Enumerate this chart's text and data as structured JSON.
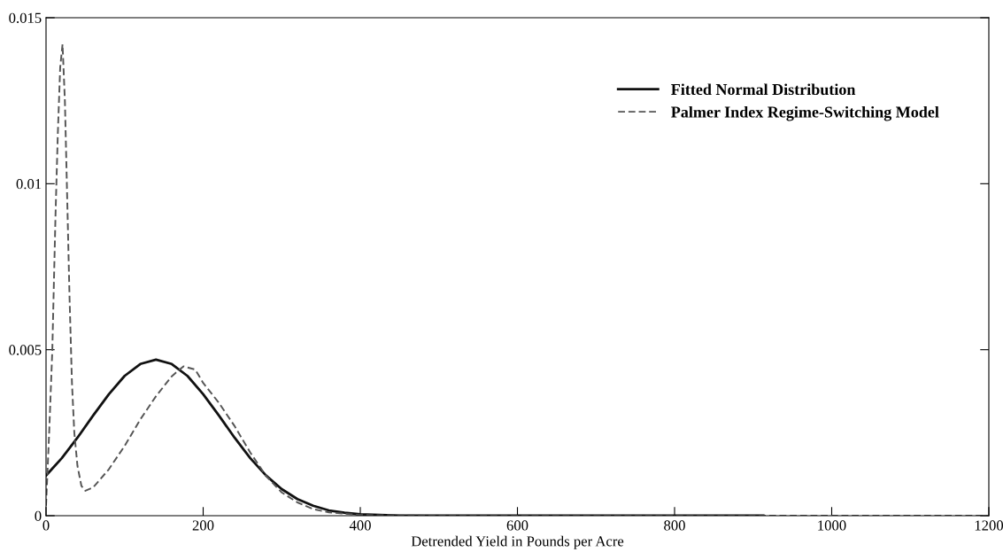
{
  "chart_data": {
    "type": "line",
    "xlabel": "Detrended Yield in Pounds per Acre",
    "xlim": [
      0,
      1200
    ],
    "xticks": [
      0,
      200,
      400,
      600,
      800,
      1000,
      1200
    ],
    "ylim": [
      0,
      0.015
    ],
    "yticks": [
      0,
      0.005,
      0.01,
      0.015
    ],
    "legend": "top right",
    "grid": false,
    "series": [
      {
        "name": "Fitted Normal Distribution",
        "color": "#111111",
        "line_style": "solid",
        "x": [
          0,
          20,
          40,
          60,
          80,
          100,
          120,
          140,
          160,
          180,
          200,
          220,
          240,
          260,
          280,
          300,
          320,
          340,
          360,
          380,
          400,
          450,
          500,
          913
        ],
        "values": [
          0.00121,
          0.00173,
          0.00235,
          0.00302,
          0.00366,
          0.00421,
          0.00457,
          0.0047,
          0.00457,
          0.00421,
          0.00366,
          0.00302,
          0.00235,
          0.00173,
          0.00121,
          0.0008,
          0.0005,
          0.0003,
          0.00016,
          9e-05,
          4e-05,
          5e-06,
          0,
          0
        ]
      },
      {
        "name": "Palmer Index Regime-Switching Model",
        "color": "#555555",
        "line_style": "dashed",
        "x": [
          0,
          4,
          8,
          12,
          15,
          18,
          21,
          24,
          27,
          30,
          33,
          36,
          40,
          45,
          50,
          60,
          80,
          100,
          120,
          140,
          160,
          175,
          190,
          200,
          220,
          240,
          260,
          280,
          300,
          320,
          340,
          360,
          400,
          500,
          1200
        ],
        "values": [
          0.0003,
          0.0025,
          0.005,
          0.009,
          0.0115,
          0.0135,
          0.0142,
          0.0125,
          0.0095,
          0.0065,
          0.004,
          0.0025,
          0.0015,
          0.0009,
          0.00075,
          0.00085,
          0.0014,
          0.0021,
          0.0029,
          0.0036,
          0.0042,
          0.0045,
          0.0044,
          0.004,
          0.0034,
          0.0027,
          0.0019,
          0.0012,
          0.0007,
          0.0004,
          0.0002,
          0.0001,
          2e-05,
          0,
          0
        ]
      }
    ]
  }
}
